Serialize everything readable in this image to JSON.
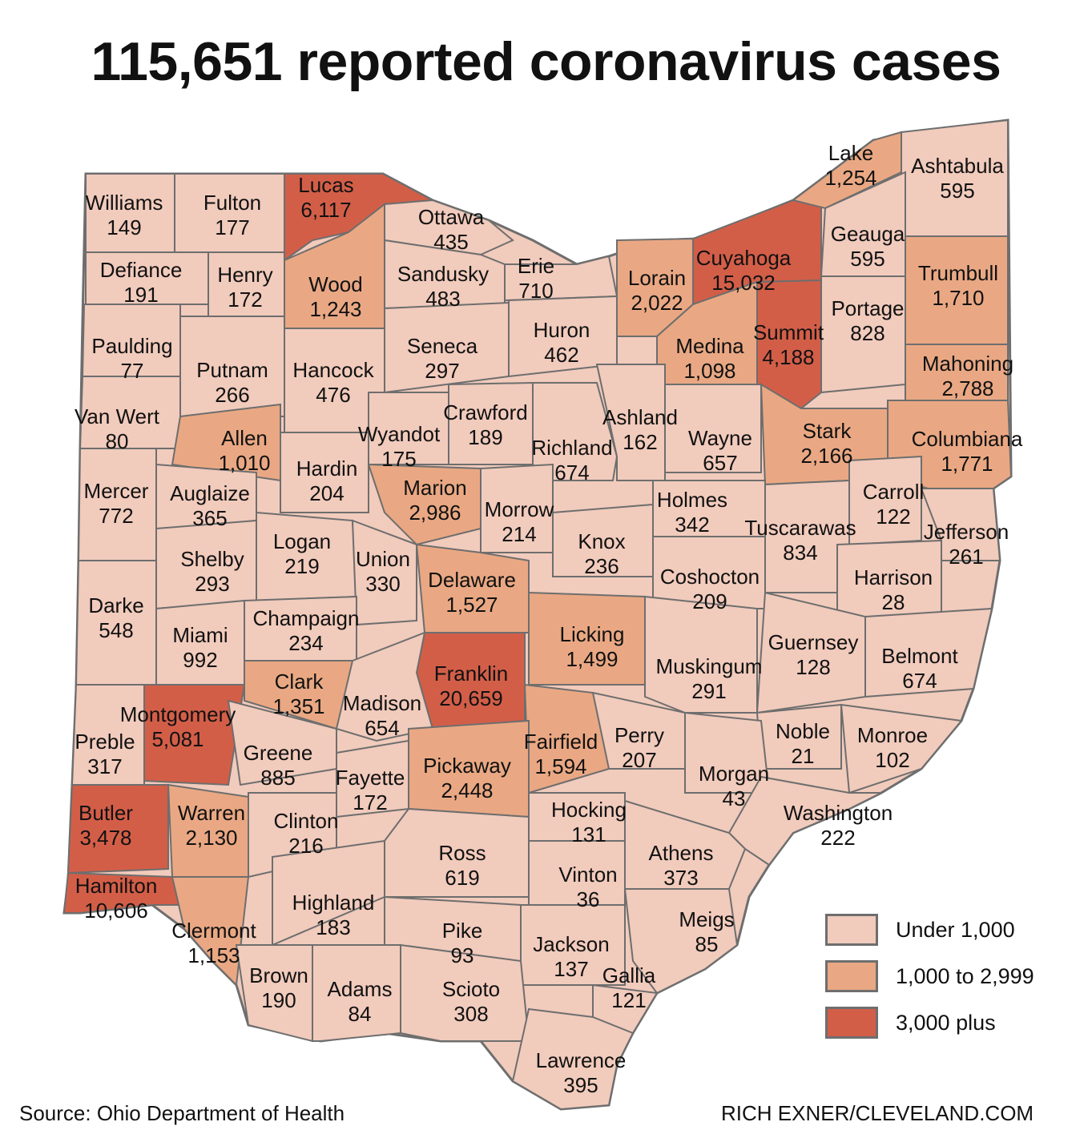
{
  "title": "115,651 reported coronavirus cases",
  "source": "Source: Ohio Department of Health",
  "credit": "RICH EXNER/CLEVELAND.COM",
  "colors": {
    "low": "#f1cbbc",
    "mid": "#e9a883",
    "high": "#d35e48"
  },
  "legend": [
    {
      "label": "Under 1,000",
      "class": "low"
    },
    {
      "label": "1,000 to 2,999",
      "class": "mid"
    },
    {
      "label": "3,000 plus",
      "class": "high"
    }
  ],
  "counties": [
    {
      "name": "Williams",
      "value": "149",
      "class": "low"
    },
    {
      "name": "Fulton",
      "value": "177",
      "class": "low"
    },
    {
      "name": "Lucas",
      "value": "6,117",
      "class": "high"
    },
    {
      "name": "Ottawa",
      "value": "435",
      "class": "low"
    },
    {
      "name": "Defiance",
      "value": "191",
      "class": "low"
    },
    {
      "name": "Henry",
      "value": "172",
      "class": "low"
    },
    {
      "name": "Wood",
      "value": "1,243",
      "class": "mid"
    },
    {
      "name": "Sandusky",
      "value": "483",
      "class": "low"
    },
    {
      "name": "Erie",
      "value": "710",
      "class": "low"
    },
    {
      "name": "Lorain",
      "value": "2,022",
      "class": "mid"
    },
    {
      "name": "Cuyahoga",
      "value": "15,032",
      "class": "high"
    },
    {
      "name": "Lake",
      "value": "1,254",
      "class": "mid"
    },
    {
      "name": "Ashtabula",
      "value": "595",
      "class": "low"
    },
    {
      "name": "Geauga",
      "value": "595",
      "class": "low"
    },
    {
      "name": "Trumbull",
      "value": "1,710",
      "class": "mid"
    },
    {
      "name": "Paulding",
      "value": "77",
      "class": "low"
    },
    {
      "name": "Putnam",
      "value": "266",
      "class": "low"
    },
    {
      "name": "Hancock",
      "value": "476",
      "class": "low"
    },
    {
      "name": "Seneca",
      "value": "297",
      "class": "low"
    },
    {
      "name": "Huron",
      "value": "462",
      "class": "low"
    },
    {
      "name": "Medina",
      "value": "1,098",
      "class": "mid"
    },
    {
      "name": "Summit",
      "value": "4,188",
      "class": "high"
    },
    {
      "name": "Portage",
      "value": "828",
      "class": "low"
    },
    {
      "name": "Mahoning",
      "value": "2,788",
      "class": "mid"
    },
    {
      "name": "Van Wert",
      "value": "80",
      "class": "low"
    },
    {
      "name": "Allen",
      "value": "1,010",
      "class": "mid"
    },
    {
      "name": "Wyandot",
      "value": "175",
      "class": "low"
    },
    {
      "name": "Crawford",
      "value": "189",
      "class": "low"
    },
    {
      "name": "Richland",
      "value": "674",
      "class": "low"
    },
    {
      "name": "Ashland",
      "value": "162",
      "class": "low"
    },
    {
      "name": "Wayne",
      "value": "657",
      "class": "low"
    },
    {
      "name": "Stark",
      "value": "2,166",
      "class": "mid"
    },
    {
      "name": "Columbiana",
      "value": "1,771",
      "class": "mid"
    },
    {
      "name": "Mercer",
      "value": "772",
      "class": "low"
    },
    {
      "name": "Auglaize",
      "value": "365",
      "class": "low"
    },
    {
      "name": "Hardin",
      "value": "204",
      "class": "low"
    },
    {
      "name": "Marion",
      "value": "2,986",
      "class": "mid"
    },
    {
      "name": "Morrow",
      "value": "214",
      "class": "low"
    },
    {
      "name": "Knox",
      "value": "236",
      "class": "low"
    },
    {
      "name": "Holmes",
      "value": "342",
      "class": "low"
    },
    {
      "name": "Tuscarawas",
      "value": "834",
      "class": "low"
    },
    {
      "name": "Carroll",
      "value": "122",
      "class": "low"
    },
    {
      "name": "Jefferson",
      "value": "261",
      "class": "low"
    },
    {
      "name": "Shelby",
      "value": "293",
      "class": "low"
    },
    {
      "name": "Logan",
      "value": "219",
      "class": "low"
    },
    {
      "name": "Union",
      "value": "330",
      "class": "low"
    },
    {
      "name": "Delaware",
      "value": "1,527",
      "class": "mid"
    },
    {
      "name": "Coshocton",
      "value": "209",
      "class": "low"
    },
    {
      "name": "Harrison",
      "value": "28",
      "class": "low"
    },
    {
      "name": "Darke",
      "value": "548",
      "class": "low"
    },
    {
      "name": "Miami",
      "value": "992",
      "class": "low"
    },
    {
      "name": "Champaign",
      "value": "234",
      "class": "low"
    },
    {
      "name": "Licking",
      "value": "1,499",
      "class": "mid"
    },
    {
      "name": "Guernsey",
      "value": "128",
      "class": "low"
    },
    {
      "name": "Belmont",
      "value": "674",
      "class": "low"
    },
    {
      "name": "Clark",
      "value": "1,351",
      "class": "mid"
    },
    {
      "name": "Franklin",
      "value": "20,659",
      "class": "high"
    },
    {
      "name": "Muskingum",
      "value": "291",
      "class": "low"
    },
    {
      "name": "Montgomery",
      "value": "5,081",
      "class": "high"
    },
    {
      "name": "Madison",
      "value": "654",
      "class": "low"
    },
    {
      "name": "Preble",
      "value": "317",
      "class": "low"
    },
    {
      "name": "Greene",
      "value": "885",
      "class": "low"
    },
    {
      "name": "Fairfield",
      "value": "1,594",
      "class": "mid"
    },
    {
      "name": "Perry",
      "value": "207",
      "class": "low"
    },
    {
      "name": "Noble",
      "value": "21",
      "class": "low"
    },
    {
      "name": "Monroe",
      "value": "102",
      "class": "low"
    },
    {
      "name": "Fayette",
      "value": "172",
      "class": "low"
    },
    {
      "name": "Pickaway",
      "value": "2,448",
      "class": "mid"
    },
    {
      "name": "Morgan",
      "value": "43",
      "class": "low"
    },
    {
      "name": "Butler",
      "value": "3,478",
      "class": "high"
    },
    {
      "name": "Warren",
      "value": "2,130",
      "class": "mid"
    },
    {
      "name": "Clinton",
      "value": "216",
      "class": "low"
    },
    {
      "name": "Hocking",
      "value": "131",
      "class": "low"
    },
    {
      "name": "Washington",
      "value": "222",
      "class": "low"
    },
    {
      "name": "Ross",
      "value": "619",
      "class": "low"
    },
    {
      "name": "Athens",
      "value": "373",
      "class": "low"
    },
    {
      "name": "Vinton",
      "value": "36",
      "class": "low"
    },
    {
      "name": "Hamilton",
      "value": "10,606",
      "class": "high"
    },
    {
      "name": "Highland",
      "value": "183",
      "class": "low"
    },
    {
      "name": "Clermont",
      "value": "1,153",
      "class": "mid"
    },
    {
      "name": "Pike",
      "value": "93",
      "class": "low"
    },
    {
      "name": "Jackson",
      "value": "137",
      "class": "low"
    },
    {
      "name": "Meigs",
      "value": "85",
      "class": "low"
    },
    {
      "name": "Brown",
      "value": "190",
      "class": "low"
    },
    {
      "name": "Adams",
      "value": "84",
      "class": "low"
    },
    {
      "name": "Scioto",
      "value": "308",
      "class": "low"
    },
    {
      "name": "Gallia",
      "value": "121",
      "class": "low"
    },
    {
      "name": "Lawrence",
      "value": "395",
      "class": "low"
    }
  ]
}
